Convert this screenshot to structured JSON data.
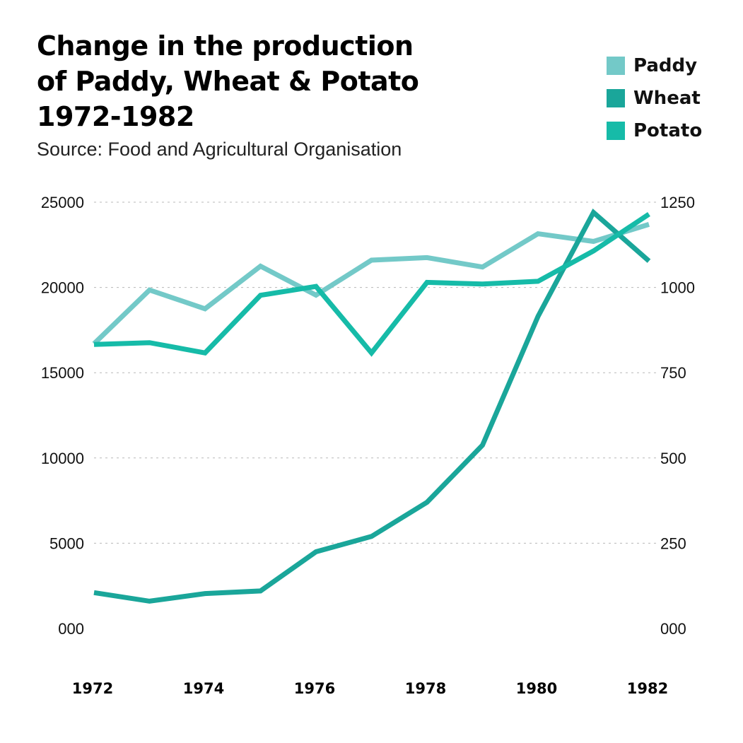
{
  "chart_data": {
    "type": "line",
    "title_lines": [
      "Change in the production",
      "of Paddy, Wheat & Potato",
      "1972-1982"
    ],
    "subtitle": "Source: Food and Agricultural Organisation",
    "x": [
      1972,
      1973,
      1974,
      1975,
      1976,
      1977,
      1978,
      1979,
      1980,
      1981,
      1982
    ],
    "x_tick_labels": [
      "1972",
      "1974",
      "1976",
      "1978",
      "1980",
      "1982"
    ],
    "x_tick_values": [
      1972,
      1974,
      1976,
      1978,
      1980,
      1982
    ],
    "xlim": [
      1972,
      1982
    ],
    "y_left": {
      "lim": [
        0,
        25000
      ],
      "ticks": [
        0,
        5000,
        10000,
        15000,
        20000,
        25000
      ],
      "tick_labels": [
        "000",
        "5000",
        "10000",
        "15000",
        "20000",
        "25000"
      ]
    },
    "y_right": {
      "lim": [
        0,
        1250
      ],
      "ticks": [
        0,
        250,
        500,
        750,
        1000,
        1250
      ],
      "tick_labels": [
        "000",
        "250",
        "500",
        "750",
        "1000",
        "1250"
      ]
    },
    "grid": "horizontal-dotted",
    "legend_position": "top-right",
    "series": [
      {
        "name": "Paddy",
        "color": "#73c9c8",
        "axis": "left",
        "values": [
          16700,
          19850,
          18750,
          21250,
          19550,
          21600,
          21750,
          21200,
          23150,
          22700,
          23700
        ]
      },
      {
        "name": "Wheat",
        "color": "#1aa69a",
        "axis": "left",
        "values": [
          2100,
          1600,
          2050,
          2200,
          4500,
          5400,
          7400,
          10750,
          18300,
          24400,
          21550
        ]
      },
      {
        "name": "Potato",
        "color": "#16bba8",
        "axis": "right",
        "values": [
          833,
          838,
          808,
          977,
          1003,
          808,
          1015,
          1010,
          1018,
          1107,
          1215
        ]
      }
    ]
  }
}
